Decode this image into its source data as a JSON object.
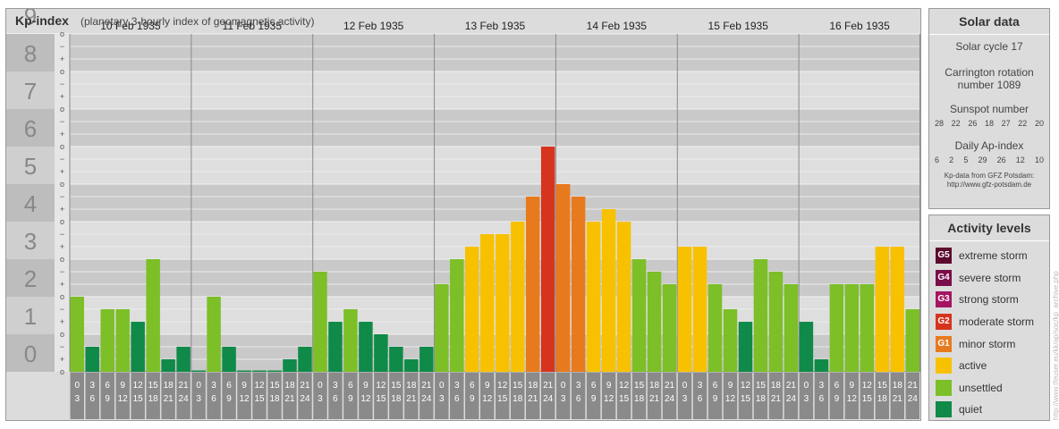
{
  "chart": {
    "title": "Kp-index",
    "subtitle": "(planetary 3-hourly index of geomagnetic activity)"
  },
  "chart_data": {
    "type": "bar",
    "title": "Kp-index",
    "subtitle": "(planetary 3-hourly index of geomagnetic activity)",
    "ylim": [
      0,
      9
    ],
    "y_ticks": [
      "0",
      "1",
      "2",
      "3",
      "4",
      "5",
      "6",
      "7",
      "8",
      "9"
    ],
    "y_minor_ticks": [
      "o",
      "+",
      "−"
    ],
    "days": [
      "10 Feb 1935",
      "11 Feb 1935",
      "12 Feb 1935",
      "13 Feb 1935",
      "14 Feb 1935",
      "15 Feb 1935",
      "16 Feb 1935"
    ],
    "hour_intervals": [
      [
        "0",
        "3"
      ],
      [
        "3",
        "6"
      ],
      [
        "6",
        "9"
      ],
      [
        "9",
        "12"
      ],
      [
        "12",
        "15"
      ],
      [
        "15",
        "18"
      ],
      [
        "18",
        "21"
      ],
      [
        "21",
        "24"
      ]
    ],
    "values": [
      [
        2.0,
        0.667,
        1.667,
        1.667,
        1.333,
        3.0,
        0.333,
        0.667
      ],
      [
        0.0,
        2.0,
        0.667,
        0.0,
        0.0,
        0.0,
        0.333,
        0.667
      ],
      [
        2.667,
        1.333,
        1.667,
        1.333,
        1.0,
        0.667,
        0.333,
        0.667
      ],
      [
        2.333,
        3.0,
        3.333,
        3.667,
        3.667,
        4.0,
        4.667,
        6.0
      ],
      [
        5.0,
        4.667,
        4.0,
        4.333,
        4.0,
        3.0,
        2.667,
        2.333
      ],
      [
        3.333,
        3.333,
        2.333,
        1.667,
        1.333,
        3.0,
        2.667,
        2.333
      ],
      [
        1.333,
        0.333,
        2.333,
        2.333,
        2.333,
        3.333,
        3.333,
        1.667
      ]
    ],
    "grid": true
  },
  "solar": {
    "title": "Solar data",
    "cycle": "Solar cycle 17",
    "carrington_1": "Carrington rotation",
    "carrington_2": "number 1089",
    "sunspot_title": "Sunspot number",
    "sunspot_values": [
      "28",
      "22",
      "26",
      "18",
      "27",
      "22",
      "20"
    ],
    "ap_title": "Daily Ap-index",
    "ap_values": [
      "6",
      "2",
      "5",
      "29",
      "26",
      "12",
      "10"
    ],
    "source_1": "Kp-data from GFZ Potsdam:",
    "source_2": "http://www.gfz-potsdam.de"
  },
  "activity": {
    "title": "Activity levels",
    "levels": [
      {
        "code": "G5",
        "label": "extreme storm",
        "color": "#5c0a2e"
      },
      {
        "code": "G4",
        "label": "severe storm",
        "color": "#7a0e4a"
      },
      {
        "code": "G3",
        "label": "strong storm",
        "color": "#a51561"
      },
      {
        "code": "G2",
        "label": "moderate storm",
        "color": "#d5351f"
      },
      {
        "code": "G1",
        "label": "minor storm",
        "color": "#e87a1e"
      },
      {
        "code": "",
        "label": "active",
        "color": "#f8c100"
      },
      {
        "code": "",
        "label": "unsettled",
        "color": "#7cbf27"
      },
      {
        "code": "",
        "label": "quiet",
        "color": "#0f8a48"
      }
    ]
  },
  "watermark": "http://www.tfeuser.eu/kk/ap/soc/kp_archive.php"
}
